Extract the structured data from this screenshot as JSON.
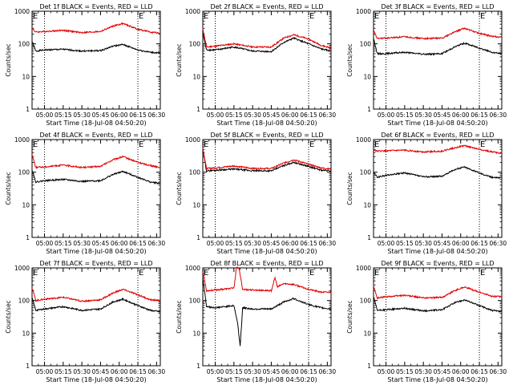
{
  "figure": {
    "xlabel": "Start Time (18-Jul-08 04:50:20)",
    "ylabel": "Counts/sec",
    "colors": {
      "events": "#000000",
      "lld": "#e00000",
      "axes": "#000000",
      "background": "#ffffff"
    }
  },
  "chart_data": [
    {
      "type": "line",
      "title": "Det 1f BLACK = Events, RED = LLD",
      "y_scale": "log",
      "ylim": [
        1,
        1000
      ],
      "yticks": [
        "1",
        "10",
        "100",
        "1000"
      ],
      "xlim": [
        "04:50",
        "06:33"
      ],
      "xticks": [
        "05:00",
        "05:15",
        "05:30",
        "05:45",
        "06:00",
        "06:15",
        "06:30"
      ],
      "markers": [
        {
          "label": "E",
          "time": "04:50"
        },
        {
          "label": "E",
          "time": "06:15"
        }
      ],
      "vlines": [
        "05:00",
        "06:15"
      ],
      "series": [
        {
          "role": "events",
          "color": "#000000",
          "x": [
            "04:50",
            "04:53",
            "05:00",
            "05:15",
            "05:30",
            "05:45",
            "05:55",
            "06:03",
            "06:15",
            "06:25",
            "06:33"
          ],
          "y": [
            120,
            60,
            65,
            68,
            60,
            62,
            85,
            95,
            65,
            55,
            52
          ]
        },
        {
          "role": "lld",
          "color": "#e00000",
          "x": [
            "04:50",
            "04:53",
            "05:00",
            "05:15",
            "05:30",
            "05:45",
            "05:55",
            "06:03",
            "06:15",
            "06:25",
            "06:33"
          ],
          "y": [
            300,
            230,
            240,
            260,
            220,
            240,
            350,
            420,
            280,
            230,
            210
          ]
        }
      ]
    },
    {
      "type": "line",
      "title": "Det 2f BLACK = Events, RED = LLD",
      "y_scale": "log",
      "ylim": [
        1,
        1000
      ],
      "yticks": [
        "1",
        "10",
        "100",
        "1000"
      ],
      "xlim": [
        "04:50",
        "06:33"
      ],
      "xticks": [
        "05:00",
        "05:15",
        "05:30",
        "05:45",
        "06:00",
        "06:15",
        "06:30"
      ],
      "markers": [
        {
          "label": "E",
          "time": "04:50"
        },
        {
          "label": "E",
          "time": "06:15"
        }
      ],
      "vlines": [
        "05:00",
        "06:15"
      ],
      "series": [
        {
          "role": "events",
          "color": "#000000",
          "x": [
            "04:50",
            "04:53",
            "05:00",
            "05:15",
            "05:30",
            "05:45",
            "05:55",
            "06:03",
            "06:15",
            "06:25",
            "06:33"
          ],
          "y": [
            220,
            65,
            65,
            80,
            60,
            58,
            110,
            150,
            100,
            70,
            60
          ]
        },
        {
          "role": "lld",
          "color": "#e00000",
          "x": [
            "04:50",
            "04:53",
            "05:00",
            "05:15",
            "05:30",
            "05:45",
            "05:55",
            "06:03",
            "06:15",
            "06:25",
            "06:33"
          ],
          "y": [
            300,
            80,
            85,
            100,
            80,
            80,
            150,
            190,
            140,
            90,
            75
          ]
        }
      ]
    },
    {
      "type": "line",
      "title": "Det 3f BLACK = Events, RED = LLD",
      "y_scale": "log",
      "ylim": [
        1,
        1000
      ],
      "yticks": [
        "1",
        "10",
        "100",
        "1000"
      ],
      "xlim": [
        "04:50",
        "06:33"
      ],
      "xticks": [
        "05:00",
        "05:15",
        "05:30",
        "05:45",
        "06:00",
        "06:15",
        "06:30"
      ],
      "markers": [
        {
          "label": "E",
          "time": "04:50"
        },
        {
          "label": "E",
          "time": "06:15"
        }
      ],
      "vlines": [
        "05:00",
        "06:15"
      ],
      "series": [
        {
          "role": "events",
          "color": "#000000",
          "x": [
            "04:50",
            "04:53",
            "05:00",
            "05:15",
            "05:30",
            "05:45",
            "05:55",
            "06:03",
            "06:15",
            "06:25",
            "06:33"
          ],
          "y": [
            150,
            50,
            50,
            55,
            48,
            50,
            80,
            105,
            75,
            55,
            50
          ]
        },
        {
          "role": "lld",
          "color": "#e00000",
          "x": [
            "04:50",
            "04:53",
            "05:00",
            "05:15",
            "05:30",
            "05:45",
            "05:55",
            "06:03",
            "06:15",
            "06:25",
            "06:33"
          ],
          "y": [
            260,
            145,
            150,
            165,
            145,
            150,
            230,
            300,
            210,
            170,
            160
          ]
        }
      ]
    },
    {
      "type": "line",
      "title": "Det 4f BLACK = Events, RED = LLD",
      "y_scale": "log",
      "ylim": [
        1,
        1000
      ],
      "yticks": [
        "1",
        "10",
        "100",
        "1000"
      ],
      "xlim": [
        "04:50",
        "06:33"
      ],
      "xticks": [
        "05:00",
        "05:15",
        "05:30",
        "05:45",
        "06:00",
        "06:15",
        "06:30"
      ],
      "markers": [
        {
          "label": "E",
          "time": "04:50"
        },
        {
          "label": "E",
          "time": "06:15"
        }
      ],
      "vlines": [
        "05:00",
        "06:15"
      ],
      "series": [
        {
          "role": "events",
          "color": "#000000",
          "x": [
            "04:50",
            "04:53",
            "05:00",
            "05:15",
            "05:30",
            "05:45",
            "05:55",
            "06:03",
            "06:15",
            "06:25",
            "06:33"
          ],
          "y": [
            120,
            50,
            55,
            60,
            52,
            55,
            85,
            105,
            70,
            50,
            45
          ]
        },
        {
          "role": "lld",
          "color": "#e00000",
          "x": [
            "04:50",
            "04:53",
            "05:00",
            "05:15",
            "05:30",
            "05:45",
            "05:55",
            "06:03",
            "06:15",
            "06:25",
            "06:33"
          ],
          "y": [
            350,
            140,
            145,
            165,
            140,
            150,
            240,
            300,
            200,
            160,
            140
          ]
        }
      ]
    },
    {
      "type": "line",
      "title": "Det 5f BLACK = Events, RED = LLD",
      "y_scale": "log",
      "ylim": [
        1,
        1000
      ],
      "yticks": [
        "1",
        "10",
        "100",
        "1000"
      ],
      "xlim": [
        "04:50",
        "06:33"
      ],
      "xticks": [
        "05:00",
        "05:15",
        "05:30",
        "05:45",
        "06:00",
        "06:15",
        "06:30"
      ],
      "markers": [
        {
          "label": "E",
          "time": "04:50"
        },
        {
          "label": "E",
          "time": "06:15"
        }
      ],
      "vlines": [
        "05:00",
        "06:15"
      ],
      "series": [
        {
          "role": "events",
          "color": "#000000",
          "x": [
            "04:50",
            "04:53",
            "05:00",
            "05:15",
            "05:30",
            "05:45",
            "05:55",
            "06:03",
            "06:15",
            "06:25",
            "06:33"
          ],
          "y": [
            500,
            110,
            115,
            125,
            110,
            110,
            160,
            200,
            150,
            115,
            110
          ]
        },
        {
          "role": "lld",
          "color": "#e00000",
          "x": [
            "04:50",
            "04:53",
            "05:00",
            "05:15",
            "05:30",
            "05:45",
            "05:55",
            "06:03",
            "06:15",
            "06:25",
            "06:33"
          ],
          "y": [
            550,
            130,
            135,
            155,
            130,
            130,
            190,
            240,
            175,
            135,
            125
          ]
        }
      ]
    },
    {
      "type": "line",
      "title": "Det 6f BLACK = Events, RED = LLD",
      "y_scale": "log",
      "ylim": [
        1,
        1000
      ],
      "yticks": [
        "1",
        "10",
        "100",
        "1000"
      ],
      "xlim": [
        "04:50",
        "06:33"
      ],
      "xticks": [
        "05:00",
        "05:15",
        "05:30",
        "05:45",
        "06:00",
        "06:15",
        "06:30"
      ],
      "markers": [
        {
          "label": "E",
          "time": "04:50"
        },
        {
          "label": "E",
          "time": "06:15"
        }
      ],
      "vlines": [
        "05:00",
        "06:15"
      ],
      "series": [
        {
          "role": "events",
          "color": "#000000",
          "x": [
            "04:50",
            "04:53",
            "05:00",
            "05:15",
            "05:30",
            "05:45",
            "05:55",
            "06:03",
            "06:15",
            "06:25",
            "06:33"
          ],
          "y": [
            100,
            70,
            80,
            95,
            72,
            75,
            120,
            145,
            95,
            70,
            68
          ]
        },
        {
          "role": "lld",
          "color": "#e00000",
          "x": [
            "04:50",
            "04:53",
            "05:00",
            "05:15",
            "05:30",
            "05:45",
            "05:55",
            "06:03",
            "06:15",
            "06:25",
            "06:33"
          ],
          "y": [
            500,
            440,
            450,
            470,
            420,
            440,
            560,
            650,
            500,
            420,
            380
          ]
        }
      ]
    },
    {
      "type": "line",
      "title": "Det 7f BLACK = Events, RED = LLD",
      "y_scale": "log",
      "ylim": [
        1,
        1000
      ],
      "yticks": [
        "1",
        "10",
        "100",
        "1000"
      ],
      "xlim": [
        "04:50",
        "06:33"
      ],
      "xticks": [
        "05:00",
        "05:15",
        "05:30",
        "05:45",
        "06:00",
        "06:15",
        "06:30"
      ],
      "markers": [
        {
          "label": "E",
          "time": "04:50"
        },
        {
          "label": "E",
          "time": "06:15"
        }
      ],
      "vlines": [
        "05:00",
        "06:15"
      ],
      "series": [
        {
          "role": "events",
          "color": "#000000",
          "x": [
            "04:50",
            "04:53",
            "05:00",
            "05:15",
            "05:30",
            "05:45",
            "05:55",
            "06:03",
            "06:15",
            "06:25",
            "06:33"
          ],
          "y": [
            120,
            50,
            55,
            65,
            50,
            55,
            90,
            110,
            70,
            50,
            45
          ]
        },
        {
          "role": "lld",
          "color": "#e00000",
          "x": [
            "04:50",
            "04:53",
            "05:00",
            "05:15",
            "05:30",
            "05:45",
            "05:55",
            "06:03",
            "06:15",
            "06:25",
            "06:33"
          ],
          "y": [
            250,
            100,
            110,
            125,
            95,
            105,
            170,
            220,
            150,
            105,
            100
          ]
        }
      ]
    },
    {
      "type": "line",
      "title": "Det 8f BLACK = Events, RED = LLD",
      "y_scale": "log",
      "ylim": [
        1,
        1000
      ],
      "yticks": [
        "1",
        "10",
        "100",
        "1000"
      ],
      "xlim": [
        "04:50",
        "06:33"
      ],
      "xticks": [
        "05:00",
        "05:15",
        "05:30",
        "05:45",
        "06:00",
        "06:15",
        "06:30"
      ],
      "markers": [
        {
          "label": "E",
          "time": "04:50"
        },
        {
          "label": "E",
          "time": "06:15"
        }
      ],
      "vlines": [
        "05:00",
        "06:15"
      ],
      "series": [
        {
          "role": "events",
          "color": "#000000",
          "x": [
            "04:50",
            "04:53",
            "05:00",
            "05:15",
            "05:18",
            "05:20",
            "05:22",
            "05:30",
            "05:45",
            "05:55",
            "06:03",
            "06:15",
            "06:25",
            "06:33"
          ],
          "y": [
            500,
            65,
            60,
            70,
            20,
            4,
            60,
            55,
            55,
            90,
            115,
            75,
            60,
            55
          ]
        },
        {
          "role": "lld",
          "color": "#e00000",
          "x": [
            "04:50",
            "04:53",
            "05:00",
            "05:15",
            "05:17",
            "05:19",
            "05:22",
            "05:30",
            "05:45",
            "05:48",
            "05:50",
            "05:55",
            "06:03",
            "06:15",
            "06:25",
            "06:33"
          ],
          "y": [
            800,
            200,
            210,
            240,
            1000,
            1000,
            220,
            210,
            200,
            500,
            260,
            330,
            310,
            220,
            180,
            180
          ]
        }
      ]
    },
    {
      "type": "line",
      "title": "Det 9f BLACK = Events, RED = LLD",
      "y_scale": "log",
      "ylim": [
        1,
        1000
      ],
      "yticks": [
        "1",
        "10",
        "100",
        "1000"
      ],
      "xlim": [
        "04:50",
        "06:33"
      ],
      "xticks": [
        "05:00",
        "05:15",
        "05:30",
        "05:45",
        "06:00",
        "06:15",
        "06:30"
      ],
      "markers": [
        {
          "label": "E",
          "time": "04:50"
        },
        {
          "label": "E",
          "time": "06:15"
        }
      ],
      "vlines": [
        "05:00",
        "06:15"
      ],
      "series": [
        {
          "role": "events",
          "color": "#000000",
          "x": [
            "04:50",
            "04:53",
            "05:00",
            "05:15",
            "05:30",
            "05:45",
            "05:55",
            "06:03",
            "06:15",
            "06:25",
            "06:33"
          ],
          "y": [
            130,
            50,
            52,
            58,
            48,
            52,
            85,
            105,
            70,
            50,
            45
          ]
        },
        {
          "role": "lld",
          "color": "#e00000",
          "x": [
            "04:50",
            "04:53",
            "05:00",
            "05:15",
            "05:30",
            "05:45",
            "05:55",
            "06:03",
            "06:15",
            "06:25",
            "06:33"
          ],
          "y": [
            280,
            120,
            130,
            145,
            120,
            125,
            200,
            260,
            180,
            135,
            130
          ]
        }
      ]
    }
  ]
}
